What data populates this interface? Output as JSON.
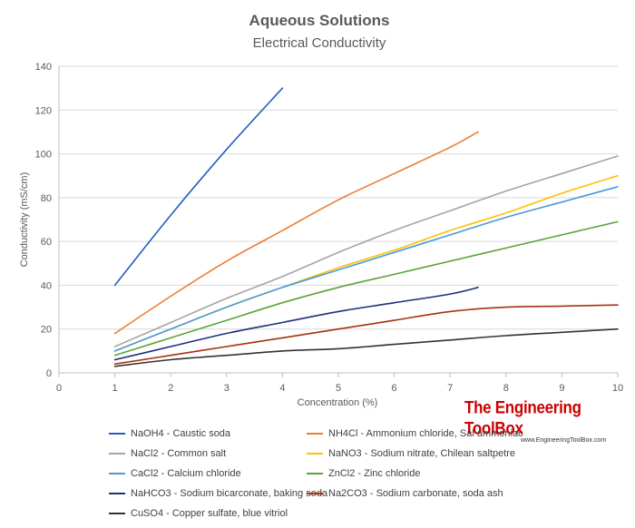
{
  "chart_data": {
    "type": "line",
    "title": "Aqueous Solutions",
    "subtitle": "Electrical Conductivity",
    "xlabel": "Concentration (%)",
    "ylabel": "Conductivity (mS/cm)",
    "xlim": [
      0,
      10
    ],
    "ylim": [
      0,
      140
    ],
    "x_ticks": [
      "0",
      "1",
      "2",
      "3",
      "4",
      "5",
      "6",
      "7",
      "8",
      "9",
      "10"
    ],
    "y_ticks": [
      "0",
      "20",
      "40",
      "60",
      "80",
      "100",
      "120",
      "140"
    ],
    "grid": "horizontal",
    "legend_position": "bottom",
    "series": [
      {
        "name": "NaOH4 - Caustic soda",
        "color": "#1f5fbf",
        "x": [
          1,
          2,
          3,
          4
        ],
        "y": [
          40,
          72,
          102,
          130
        ]
      },
      {
        "name": "NH4Cl - Ammonium chloride, Sal ammoniac",
        "color": "#ed7d31",
        "x": [
          1,
          2,
          3,
          4,
          5,
          6,
          7,
          7.5
        ],
        "y": [
          18,
          35,
          51,
          65,
          79,
          91,
          103,
          110
        ]
      },
      {
        "name": "NaCl2 - Common salt",
        "color": "#a5a5a5",
        "x": [
          1,
          2,
          3,
          4,
          5,
          6,
          7,
          8,
          9,
          10
        ],
        "y": [
          12,
          23,
          34,
          44,
          55,
          65,
          74,
          83,
          91,
          99
        ]
      },
      {
        "name": "NaNO3 - Sodium nitrate, Chilean saltpetre",
        "color": "#ffc000",
        "x": [
          1,
          2,
          3,
          4,
          5,
          6,
          7,
          8,
          9,
          10
        ],
        "y": [
          10,
          20,
          30,
          39,
          48,
          56,
          65,
          73,
          82,
          90
        ]
      },
      {
        "name": "CaCl2 - Calcium chloride",
        "color": "#4a9ad8",
        "x": [
          1,
          2,
          3,
          4,
          5,
          6,
          7,
          8,
          9,
          10
        ],
        "y": [
          10,
          20,
          30,
          39,
          47,
          55,
          63,
          71,
          78,
          85
        ]
      },
      {
        "name": "ZnCl2 - Zinc chloride",
        "color": "#5aa532",
        "x": [
          1,
          2,
          3,
          4,
          5,
          6,
          7,
          8,
          9,
          10
        ],
        "y": [
          8,
          16,
          24,
          32,
          39,
          45,
          51,
          57,
          63,
          69
        ]
      },
      {
        "name": "NaHCO3 - Sodium bicarconate, baking soda",
        "color": "#1f2f7a",
        "x": [
          1,
          2,
          3,
          4,
          5,
          6,
          7,
          7.5
        ],
        "y": [
          6,
          12,
          18,
          23,
          28,
          32,
          36,
          39
        ]
      },
      {
        "name": "Na2CO3 - Sodium carbonate, soda ash",
        "color": "#a5320f",
        "x": [
          1,
          2,
          3,
          4,
          5,
          6,
          7,
          8,
          9,
          10
        ],
        "y": [
          4,
          8,
          12,
          16,
          20,
          24,
          28,
          30,
          30.5,
          31
        ]
      },
      {
        "name": "CuSO4 - Copper sulfate, blue vitriol",
        "color": "#333333",
        "x": [
          1,
          2,
          3,
          4,
          5,
          6,
          7,
          8,
          9,
          10
        ],
        "y": [
          3,
          6,
          8,
          10,
          11,
          13,
          15,
          17,
          18.5,
          20
        ]
      }
    ]
  },
  "watermark": {
    "title": "The Engineering ToolBox",
    "url": "www.EngineeringToolBox.com"
  }
}
